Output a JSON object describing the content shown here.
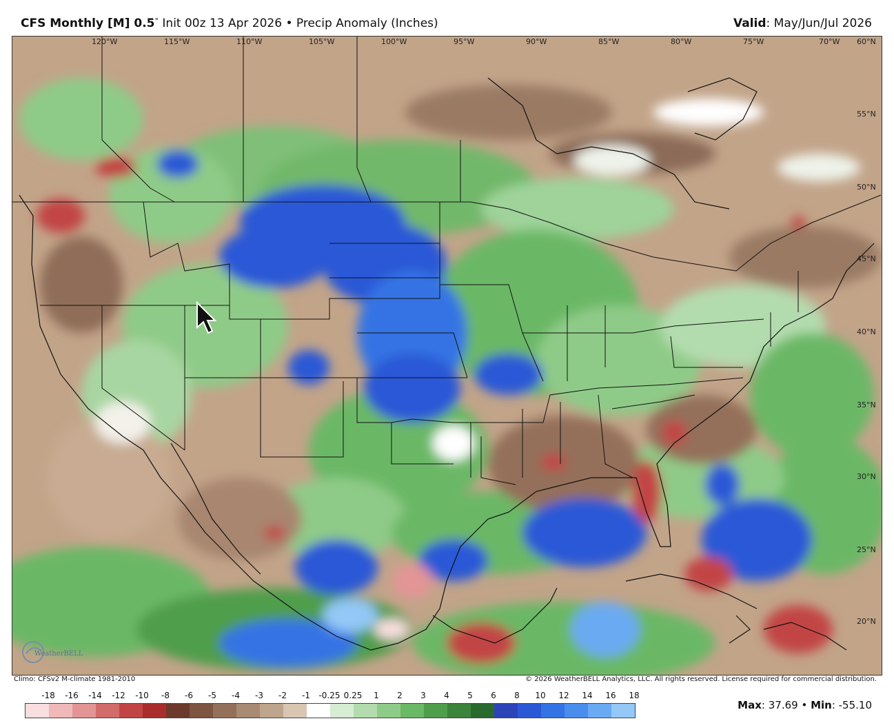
{
  "header": {
    "model": "CFS Monthly [M] 0.5",
    "degree": "°",
    "init": "Init 00z 13 Apr 2026",
    "separator": "•",
    "field": "Precip Anomaly (Inches)",
    "valid_label": "Valid",
    "valid_value": ": May/Jun/Jul 2026"
  },
  "map": {
    "longitude_labels": [
      "120°W",
      "115°W",
      "110°W",
      "105°W",
      "100°W",
      "95°W",
      "90°W",
      "85°W",
      "80°W",
      "75°W",
      "70°W"
    ],
    "latitude_labels": [
      "60°N",
      "55°N",
      "50°N",
      "45°N",
      "40°N",
      "35°N",
      "30°N",
      "25°N",
      "20°N"
    ],
    "logo_text": "WeatherBELL",
    "climo_note": "Climo: CFSv2 M-climate 1981-2010",
    "copyright": "© 2026 WeatherBELL Analytics, LLC. All rights reserved. License required for commercial distribution."
  },
  "legend": {
    "labels": [
      "-18",
      "-16",
      "-14",
      "-12",
      "-10",
      "-8",
      "-6",
      "-5",
      "-4",
      "-3",
      "-2",
      "-1",
      "-0.25",
      "0.25",
      "1",
      "2",
      "3",
      "4",
      "5",
      "6",
      "8",
      "10",
      "12",
      "14",
      "16",
      "18"
    ],
    "colors": [
      "#f8dede",
      "#efb9b9",
      "#e39595",
      "#d36b6b",
      "#c24545",
      "#a92d2d",
      "#6b3a2c",
      "#7d5541",
      "#94705a",
      "#a98a72",
      "#bfa58e",
      "#d8c5b2",
      "#ffffff",
      "#d6ecd3",
      "#b3dcae",
      "#8fcb88",
      "#6bb866",
      "#4f9e4c",
      "#3c833c",
      "#2b6a2e",
      "#2d44b8",
      "#2b59d6",
      "#3573e4",
      "#4a8ded",
      "#6aaaf2",
      "#93c8f7"
    ]
  },
  "stats": {
    "max_label": "Max",
    "max_value": ": 37.69",
    "separator": " • ",
    "min_label": "Min",
    "min_value": ": -55.10"
  }
}
